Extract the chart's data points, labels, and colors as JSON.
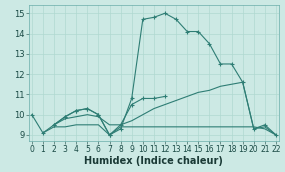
{
  "xlabel": "Humidex (Indice chaleur)",
  "background_color": "#cce9e4",
  "grid_color": "#b0d8d0",
  "line_color": "#2e7d74",
  "xlim": [
    -0.3,
    22.3
  ],
  "ylim": [
    8.7,
    15.4
  ],
  "xticks": [
    0,
    1,
    2,
    3,
    4,
    5,
    6,
    7,
    8,
    9,
    10,
    11,
    12,
    13,
    14,
    15,
    16,
    17,
    18,
    19,
    20,
    21,
    22
  ],
  "yticks": [
    9,
    10,
    11,
    12,
    13,
    14,
    15
  ],
  "series": [
    {
      "x": [
        0,
        1,
        2,
        3,
        4,
        5,
        6,
        7,
        8,
        9,
        10,
        11,
        12,
        13,
        14,
        15,
        16,
        17,
        18,
        19,
        20,
        21,
        22
      ],
      "y": [
        10.0,
        9.1,
        9.5,
        9.9,
        10.2,
        10.3,
        10.0,
        9.0,
        9.3,
        10.8,
        14.7,
        14.8,
        15.0,
        14.7,
        14.1,
        14.1,
        13.5,
        12.5,
        12.5,
        11.6,
        9.3,
        9.5,
        9.0
      ],
      "marker": "+"
    },
    {
      "x": [
        1,
        2,
        3,
        4,
        5,
        6,
        7,
        8,
        9,
        10,
        11,
        12,
        13,
        14,
        15,
        16,
        17,
        18,
        19,
        20,
        21,
        22
      ],
      "y": [
        9.1,
        9.4,
        9.4,
        9.5,
        9.5,
        9.5,
        9.0,
        9.4,
        9.4,
        9.4,
        9.4,
        9.4,
        9.4,
        9.4,
        9.4,
        9.4,
        9.4,
        9.4,
        9.4,
        9.4,
        9.3,
        9.0
      ],
      "marker": null
    },
    {
      "x": [
        2,
        3,
        4,
        5,
        6,
        7,
        8,
        9,
        10,
        11,
        12,
        13,
        14,
        15,
        16,
        17,
        18,
        19,
        20,
        21,
        22
      ],
      "y": [
        9.5,
        9.8,
        9.9,
        10.0,
        9.9,
        9.5,
        9.5,
        9.7,
        10.0,
        10.3,
        10.5,
        10.7,
        10.9,
        11.1,
        11.2,
        11.4,
        11.5,
        11.6,
        9.3,
        9.4,
        9.0
      ],
      "marker": null
    },
    {
      "x": [
        2,
        3,
        4,
        5,
        6,
        7,
        8,
        9,
        10,
        11,
        12
      ],
      "y": [
        9.5,
        9.9,
        10.2,
        10.3,
        10.0,
        9.0,
        9.5,
        10.5,
        10.8,
        10.8,
        10.9
      ],
      "marker": "+"
    }
  ]
}
